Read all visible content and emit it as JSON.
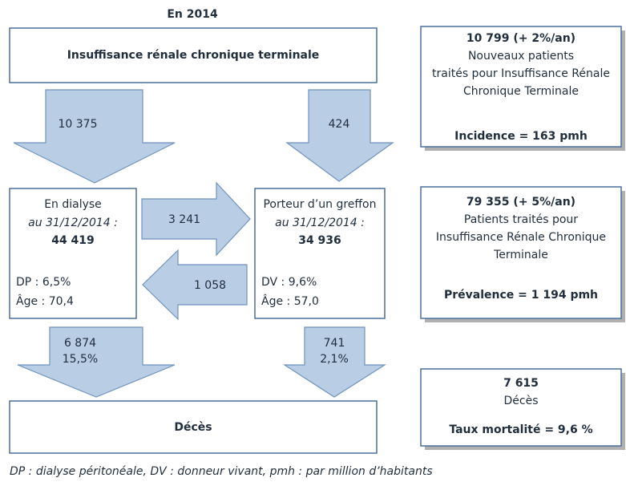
{
  "title": "En 2014",
  "top_box": "Insuffisance rénale chronique terminale",
  "arrows": {
    "to_dialysis": "10 375",
    "to_transplant": "424",
    "dialysis_to_transplant": "3 241",
    "transplant_to_dialysis": "1 058",
    "dialysis_deaths": [
      "6 874",
      "15,5%"
    ],
    "transplant_deaths": [
      "741",
      "2,1%"
    ]
  },
  "dialysis": {
    "label": "En dialyse",
    "date": "au 31/12/2014 :",
    "count": "44 419",
    "dp": "DP : 6,5%",
    "age": "Âge : 70,4"
  },
  "transplant": {
    "label": "Porteur d’un greffon",
    "date": "au 31/12/2014 :",
    "count": "34 936",
    "dv": "DV : 9,6%",
    "age": "Âge : 57,0"
  },
  "deaths_box": "Décès",
  "incidence": {
    "headline": "10 799 (+ 2%/an)",
    "lines": [
      "Nouveaux patients",
      "traités pour Insuffisance Rénale",
      "Chronique Terminale"
    ],
    "rate": "Incidence = 163 pmh"
  },
  "prevalence": {
    "headline": "79 355 (+ 5%/an)",
    "lines": [
      "Patients traités pour",
      "Insuffisance Rénale Chronique",
      "Terminale"
    ],
    "rate": "Prévalence = 1 194 pmh"
  },
  "mortality": {
    "headline": "7 615",
    "lines": [
      "Décès"
    ],
    "rate": "Taux mortalité = 9,6 %"
  },
  "footnote": "DP : dialyse péritonéale, DV : donneur vivant, pmh : par million d’habitants"
}
